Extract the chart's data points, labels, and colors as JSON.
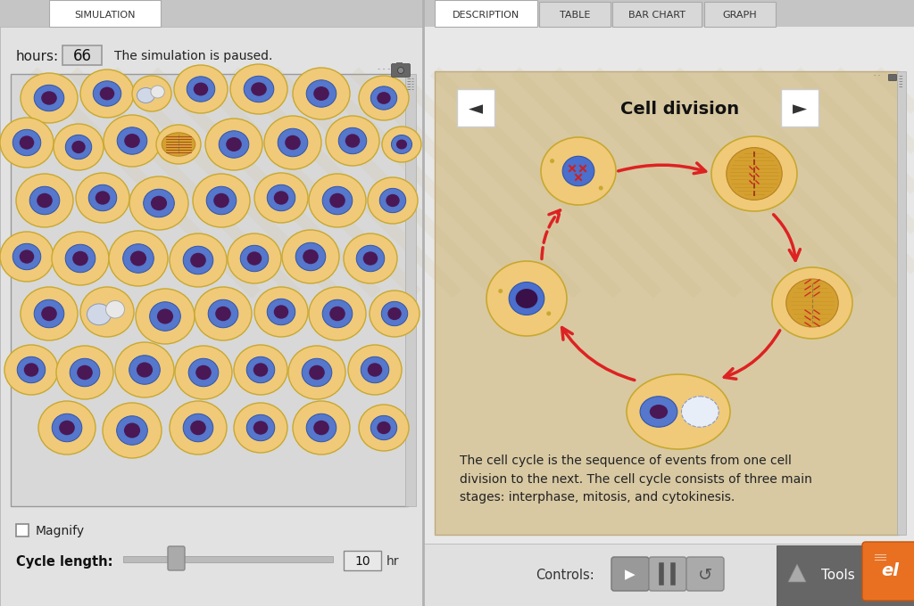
{
  "bg_color": "#d0d0d0",
  "left_panel_bg": "#e2e2e2",
  "right_panel_bg": "#d8c9a3",
  "sim_area_bg": "#d8d8d8",
  "sim_tab_label": "SIMULATION",
  "desc_tab_label": "DESCRIPTION",
  "table_tab_label": "TABLE",
  "barchart_tab_label": "BAR CHART",
  "graph_tab_label": "GRAPH",
  "hours_label": "hours:",
  "hours_value": "66",
  "paused_text": "The simulation is paused.",
  "magnify_label": "Magnify",
  "cycle_label": "Cycle length:",
  "cycle_value": "10",
  "cycle_unit": "hr",
  "cell_division_title": "Cell division",
  "description_text": "The cell cycle is the sequence of events from one cell\ndivision to the next. The cell cycle consists of three main\nstages: interphase, mitosis, and cytokinesis.",
  "cell_outer_color": "#f0ca78",
  "cell_border_color": "#c8a830",
  "cell_inner_blue": "#5577cc",
  "nucleus_dark": "#4a1a5e",
  "arrow_color": "#dd2222",
  "controls_label": "Controls:",
  "tools_label": "Tools"
}
